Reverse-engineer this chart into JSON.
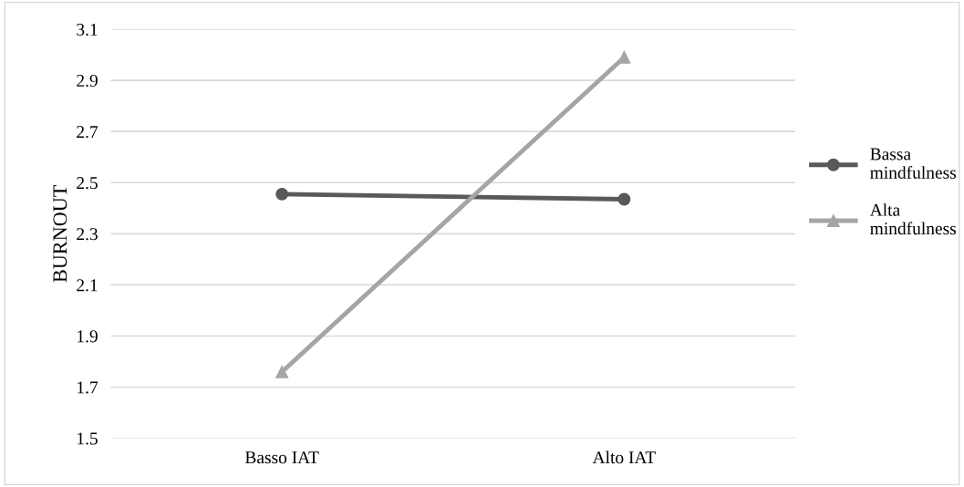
{
  "chart_data": {
    "type": "line",
    "ylabel": "BURNOUT",
    "categories": [
      "Basso IAT",
      "Alto IAT"
    ],
    "series": [
      {
        "name": "Bassa\nmindfulness",
        "color": "#595959",
        "values": [
          2.455,
          2.435
        ],
        "marker": "circle"
      },
      {
        "name": "Alta\nmindfulness",
        "color": "#a5a5a5",
        "values": [
          1.76,
          2.99
        ],
        "marker": "triangle"
      }
    ],
    "ylim": [
      1.5,
      3.1
    ],
    "yticks": [
      1.5,
      1.7,
      1.9,
      2.1,
      2.3,
      2.5,
      2.7,
      2.9,
      3.1
    ],
    "grid": "y",
    "legend": "right",
    "line_style": "solid"
  }
}
